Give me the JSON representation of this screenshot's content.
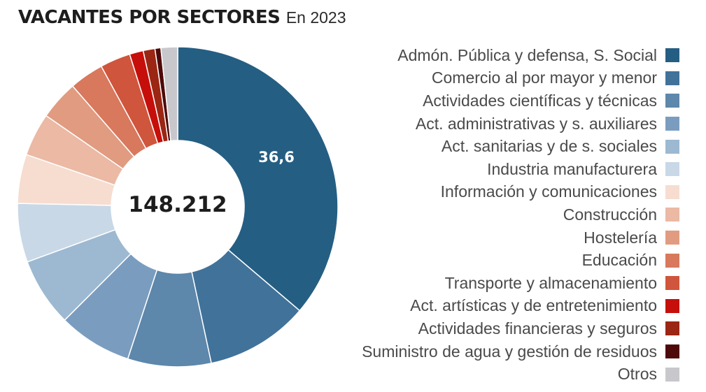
{
  "header": {
    "title": "VACANTES POR SECTORES",
    "subtitle": "En 2023"
  },
  "chart_data": {
    "type": "donut",
    "title": "VACANTES POR SECTORES",
    "subtitle": "En 2023",
    "center_label": "148.212",
    "unit": "%",
    "data_label": "36,6",
    "legend_position": "right",
    "series": [
      {
        "label": "Admón. Pública y defensa, S. Social",
        "value": 36.6,
        "color": "#255e83"
      },
      {
        "label": "Comercio al por mayor y menor",
        "value": 10.5,
        "color": "#41729a"
      },
      {
        "label": "Actividades científicas y técnicas",
        "value": 8.5,
        "color": "#5d87ab"
      },
      {
        "label": "Act. administrativas y s. auxiliares",
        "value": 7.5,
        "color": "#7a9dbf"
      },
      {
        "label": "Act. sanitarias y de s. sociales",
        "value": 7.0,
        "color": "#9db9d1"
      },
      {
        "label": "Industria manufacturera",
        "value": 6.0,
        "color": "#c9d8e6"
      },
      {
        "label": "Información y comunicaciones",
        "value": 5.0,
        "color": "#f6ddd0"
      },
      {
        "label": "Construcción",
        "value": 4.4,
        "color": "#ebb9a4"
      },
      {
        "label": "Hostelería",
        "value": 4.0,
        "color": "#e19b80"
      },
      {
        "label": "Educación",
        "value": 3.5,
        "color": "#d8785d"
      },
      {
        "label": "Transporte y almacenamiento",
        "value": 3.1,
        "color": "#cf553c"
      },
      {
        "label": "Act. artísticas y de entretenimiento",
        "value": 1.4,
        "color": "#c60f0b"
      },
      {
        "label": "Actividades financieras y seguros",
        "value": 1.2,
        "color": "#9b2613"
      },
      {
        "label": "Suministro de agua y gestión de residuos",
        "value": 0.6,
        "color": "#4e0a0a"
      },
      {
        "label": "Otros",
        "value": 1.7,
        "color": "#c8c8cc"
      }
    ]
  }
}
